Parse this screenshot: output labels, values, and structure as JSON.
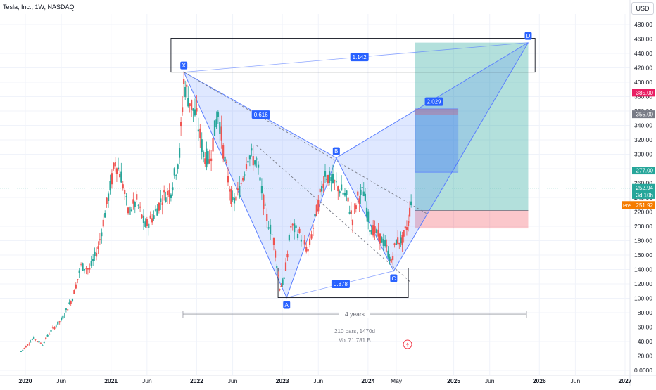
{
  "header": {
    "symbol_title": "Tesla, Inc., 1W, NASDAQ",
    "currency": "USD"
  },
  "axis": {
    "y_ticks": [
      0,
      20,
      40,
      60,
      80,
      100,
      120,
      140,
      160,
      180,
      200,
      220,
      240,
      260,
      280,
      300,
      320,
      340,
      360,
      380,
      400,
      420,
      440,
      460,
      480
    ],
    "y_tick_labels": [
      "0.0000",
      "20.00",
      "40.00",
      "60.00",
      "80.00",
      "100.00",
      "120.00",
      "140.00",
      "160.00",
      "180.00",
      "200.00",
      "220.00",
      "240.00",
      "260.00",
      "280.00",
      "300.00",
      "320.00",
      "340.00",
      "360.00",
      "380.00",
      "400.00",
      "420.00",
      "440.00",
      "460.00",
      "480.00"
    ],
    "x_ticks": [
      {
        "label": "2020",
        "t": 2020.0,
        "bold": true
      },
      {
        "label": "Jun",
        "t": 2020.42,
        "bold": false
      },
      {
        "label": "2021",
        "t": 2021.0,
        "bold": true
      },
      {
        "label": "Jun",
        "t": 2021.42,
        "bold": false
      },
      {
        "label": "2022",
        "t": 2022.0,
        "bold": true
      },
      {
        "label": "Jun",
        "t": 2022.42,
        "bold": false
      },
      {
        "label": "2023",
        "t": 2023.0,
        "bold": true
      },
      {
        "label": "Jun",
        "t": 2023.42,
        "bold": false
      },
      {
        "label": "2024",
        "t": 2024.0,
        "bold": true
      },
      {
        "label": "May",
        "t": 2024.33,
        "bold": false
      },
      {
        "label": "2025",
        "t": 2025.0,
        "bold": true
      },
      {
        "label": "Jun",
        "t": 2025.42,
        "bold": false
      },
      {
        "label": "2026",
        "t": 2026.0,
        "bold": true
      },
      {
        "label": "Jun",
        "t": 2026.42,
        "bold": false
      },
      {
        "label": "2027",
        "t": 2027.0,
        "bold": true
      }
    ]
  },
  "price_tags": [
    {
      "label": "385.00",
      "price": 385,
      "color": "#e91e63"
    },
    {
      "label": "355.00",
      "price": 355,
      "color": "#787b86"
    },
    {
      "label": "277.00",
      "price": 277,
      "color": "#26a69a"
    },
    {
      "label": "252.94",
      "price": 252.94,
      "color": "#26a69a"
    },
    {
      "label": "3d 10h",
      "price": 243,
      "color": "#26a69a"
    },
    {
      "label": "251.92",
      "price": 229,
      "color": "#f57c00",
      "prefix": "Pre"
    }
  ],
  "chart_data": {
    "type": "candlestick",
    "symbol": "Tesla, Inc., 1W, NASDAQ",
    "ylim": [
      0,
      490
    ],
    "xlim": [
      2019.95,
      2027.0
    ],
    "ohlc_path": [
      [
        2019.95,
        26
      ],
      [
        2020.1,
        45
      ],
      [
        2020.2,
        36
      ],
      [
        2020.3,
        55
      ],
      [
        2020.42,
        70
      ],
      [
        2020.55,
        100
      ],
      [
        2020.65,
        145
      ],
      [
        2020.75,
        140
      ],
      [
        2020.85,
        170
      ],
      [
        2020.95,
        230
      ],
      [
        2021.05,
        290
      ],
      [
        2021.12,
        270
      ],
      [
        2021.2,
        220
      ],
      [
        2021.3,
        235
      ],
      [
        2021.4,
        200
      ],
      [
        2021.5,
        215
      ],
      [
        2021.6,
        240
      ],
      [
        2021.7,
        250
      ],
      [
        2021.8,
        300
      ],
      [
        2021.85,
        400
      ],
      [
        2021.9,
        380
      ],
      [
        2022.0,
        350
      ],
      [
        2022.08,
        300
      ],
      [
        2022.15,
        290
      ],
      [
        2022.25,
        360
      ],
      [
        2022.33,
        290
      ],
      [
        2022.42,
        230
      ],
      [
        2022.5,
        250
      ],
      [
        2022.6,
        300
      ],
      [
        2022.7,
        290
      ],
      [
        2022.8,
        220
      ],
      [
        2022.9,
        180
      ],
      [
        2022.97,
        115
      ],
      [
        2023.02,
        125
      ],
      [
        2023.1,
        200
      ],
      [
        2023.2,
        190
      ],
      [
        2023.3,
        165
      ],
      [
        2023.4,
        220
      ],
      [
        2023.5,
        275
      ],
      [
        2023.55,
        265
      ],
      [
        2023.65,
        255
      ],
      [
        2023.75,
        240
      ],
      [
        2023.82,
        210
      ],
      [
        2023.88,
        240
      ],
      [
        2023.95,
        248
      ],
      [
        2024.02,
        200
      ],
      [
        2024.1,
        190
      ],
      [
        2024.2,
        175
      ],
      [
        2024.27,
        150
      ],
      [
        2024.33,
        180
      ],
      [
        2024.4,
        180
      ],
      [
        2024.47,
        205
      ],
      [
        2024.52,
        252.94
      ]
    ],
    "harmonic_pattern": {
      "points": [
        {
          "label": "X",
          "t": 2021.85,
          "price": 414
        },
        {
          "label": "A",
          "t": 2023.05,
          "price": 101
        },
        {
          "label": "B",
          "t": 2023.63,
          "price": 295
        },
        {
          "label": "C",
          "t": 2024.3,
          "price": 138
        },
        {
          "label": "D",
          "t": 2025.87,
          "price": 455
        }
      ],
      "ratios": [
        {
          "label": "0.616",
          "t": 2022.75,
          "price": 355
        },
        {
          "label": "0.878",
          "t": 2023.68,
          "price": 120
        },
        {
          "label": "2.029",
          "t": 2024.77,
          "price": 373
        },
        {
          "label": "1.142",
          "t": 2023.9,
          "price": 435
        }
      ]
    },
    "long_position": {
      "entry": 222,
      "target": 455,
      "stop": 197,
      "t_start": 2024.55,
      "t_end": 2025.87
    },
    "measure": {
      "label": "4 years",
      "t_start": 2021.84,
      "t_end": 2025.85,
      "price": 78
    },
    "bars_info": {
      "label": "210 bars, 1470d",
      "volume": "Vol 71.781 B"
    }
  }
}
